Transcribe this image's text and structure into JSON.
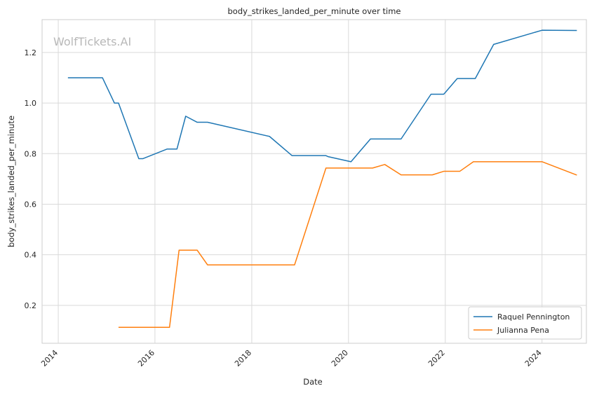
{
  "watermark": "WolfTickets.AI",
  "chart_data": {
    "type": "line",
    "title": "body_strikes_landed_per_minute over time",
    "xlabel": "Date",
    "ylabel": "body_strikes_landed_per_minute",
    "x_ticks": [
      "2014",
      "2016",
      "2018",
      "2020",
      "2022",
      "2024"
    ],
    "y_ticks": [
      "0.2",
      "0.4",
      "0.6",
      "0.8",
      "1.0",
      "1.2"
    ],
    "xlim": [
      "2013-09-01",
      "2024-12-01"
    ],
    "ylim": [
      0.05,
      1.33
    ],
    "grid": true,
    "legend_position": "bottom-right",
    "series": [
      {
        "name": "Raquel Pennington",
        "color": "#1f77b4",
        "points": [
          [
            "2014-03-15",
            1.1
          ],
          [
            "2014-12-01",
            1.1
          ],
          [
            "2015-03-01",
            1.0
          ],
          [
            "2015-04-01",
            1.0
          ],
          [
            "2015-09-01",
            0.78
          ],
          [
            "2015-10-01",
            0.78
          ],
          [
            "2016-04-01",
            0.818
          ],
          [
            "2016-06-15",
            0.818
          ],
          [
            "2016-08-20",
            0.948
          ],
          [
            "2016-11-15",
            0.924
          ],
          [
            "2017-02-01",
            0.924
          ],
          [
            "2018-05-15",
            0.868
          ],
          [
            "2018-11-01",
            0.792
          ],
          [
            "2019-07-15",
            0.792
          ],
          [
            "2019-08-01",
            0.788
          ],
          [
            "2020-01-20",
            0.768
          ],
          [
            "2020-06-15",
            0.858
          ],
          [
            "2021-02-01",
            0.858
          ],
          [
            "2021-09-15",
            1.035
          ],
          [
            "2021-12-20",
            1.035
          ],
          [
            "2022-01-01",
            1.042
          ],
          [
            "2022-04-01",
            1.097
          ],
          [
            "2022-08-15",
            1.097
          ],
          [
            "2023-01-01",
            1.232
          ],
          [
            "2024-01-01",
            1.288
          ],
          [
            "2024-09-20",
            1.287
          ]
        ]
      },
      {
        "name": "Julianna Pena",
        "color": "#ff7f0e",
        "points": [
          [
            "2015-04-01",
            0.113
          ],
          [
            "2016-04-20",
            0.113
          ],
          [
            "2016-07-01",
            0.418
          ],
          [
            "2016-11-15",
            0.418
          ],
          [
            "2017-02-01",
            0.36
          ],
          [
            "2018-11-20",
            0.36
          ],
          [
            "2019-07-15",
            0.743
          ],
          [
            "2020-07-01",
            0.743
          ],
          [
            "2020-10-01",
            0.757
          ],
          [
            "2021-02-01",
            0.716
          ],
          [
            "2021-09-25",
            0.716
          ],
          [
            "2021-12-20",
            0.73
          ],
          [
            "2022-04-20",
            0.73
          ],
          [
            "2022-08-01",
            0.768
          ],
          [
            "2024-01-01",
            0.768
          ],
          [
            "2024-09-20",
            0.715
          ]
        ]
      }
    ]
  }
}
